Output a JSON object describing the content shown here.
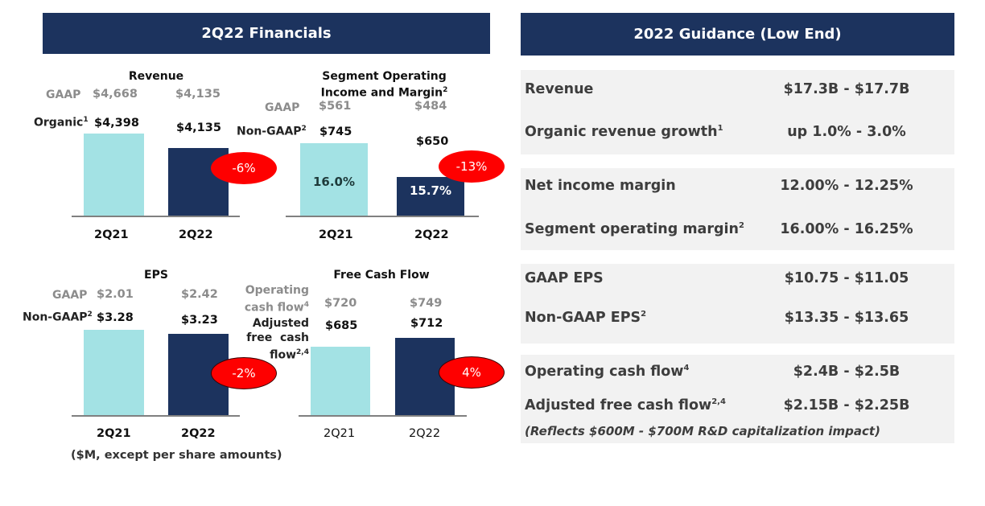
{
  "left_panel": {
    "title": "2Q22 Financials",
    "footnote": "($M, except per share amounts)"
  },
  "right_panel": {
    "title": "2022 Guidance (Low End)",
    "groups": [
      [
        {
          "label": "Revenue",
          "sup": "",
          "value": "$17.3B - $17.7B"
        },
        {
          "label": "Organic revenue growth",
          "sup": "1",
          "value": "up 1.0% - 3.0%"
        }
      ],
      [
        {
          "label": "Net income margin",
          "sup": "",
          "value": "12.00% - 12.25%"
        },
        {
          "label": "Segment operating margin",
          "sup": "2",
          "value": "16.00% - 16.25%"
        }
      ],
      [
        {
          "label": "GAAP EPS",
          "sup": "",
          "value": "$10.75 - $11.05"
        },
        {
          "label": "Non-GAAP EPS",
          "sup": "2",
          "value": "$13.35 - $13.65"
        }
      ],
      [
        {
          "label": "Operating cash flow",
          "sup": "4",
          "value": "$2.4B - $2.5B"
        },
        {
          "label": "Adjusted free cash flow",
          "sup": "2,4",
          "value": "$2.15B - $2.25B"
        }
      ]
    ],
    "note": "(Reflects $600M - $700M R&D capitalization impact)"
  },
  "chart_data": [
    {
      "type": "bar",
      "title": "Revenue",
      "categories": [
        "2Q21",
        "2Q22"
      ],
      "series": [
        {
          "name": "Organic",
          "sup": "1",
          "values": [
            4398,
            4135
          ],
          "labels": [
            "$4,398",
            "$4,135"
          ]
        },
        {
          "name": "GAAP",
          "sup": "",
          "values": [
            4668,
            4135
          ],
          "labels": [
            "$4,668",
            "$4,135"
          ]
        }
      ],
      "change": "-6%",
      "in_bar_labels": [
        "",
        ""
      ]
    },
    {
      "type": "bar",
      "title": "Segment Operating Income and Margin",
      "title_lines": [
        "Segment Operating",
        "Income and Margin"
      ],
      "title_sup": "2",
      "categories": [
        "2Q21",
        "2Q22"
      ],
      "series": [
        {
          "name": "Non-GAAP",
          "sup": "2",
          "values": [
            745,
            650
          ],
          "labels": [
            "$745",
            "$650"
          ]
        },
        {
          "name": "GAAP",
          "sup": "",
          "values": [
            561,
            484
          ],
          "labels": [
            "$561",
            "$484"
          ]
        }
      ],
      "change": "-13%",
      "in_bar_labels": [
        "16.0%",
        "15.7%"
      ]
    },
    {
      "type": "bar",
      "title": "EPS",
      "categories": [
        "2Q21",
        "2Q22"
      ],
      "series": [
        {
          "name": "Non-GAAP",
          "sup": "2",
          "values": [
            3.28,
            3.23
          ],
          "labels": [
            "$3.28",
            "$3.23"
          ]
        },
        {
          "name": "GAAP",
          "sup": "",
          "values": [
            2.01,
            2.42
          ],
          "labels": [
            "$2.01",
            "$2.42"
          ]
        }
      ],
      "change": "-2%",
      "in_bar_labels": [
        "",
        ""
      ]
    },
    {
      "type": "bar",
      "title": "Free Cash Flow",
      "categories": [
        "2Q21",
        "2Q22"
      ],
      "series": [
        {
          "name": "Adjusted free cash flow",
          "name_lines": [
            "Adjusted",
            "free  cash",
            "flow"
          ],
          "sup": "2,4",
          "values": [
            685,
            712
          ],
          "labels": [
            "$685",
            "$712"
          ]
        },
        {
          "name": "Operating cash flow",
          "name_lines": [
            "Operating",
            "cash flow"
          ],
          "sup": "4",
          "values": [
            720,
            749
          ],
          "labels": [
            "$720",
            "$749"
          ]
        }
      ],
      "change": "4%",
      "in_bar_labels": [
        "",
        ""
      ]
    }
  ],
  "colors": {
    "banner": "#1c335e",
    "bar_prior": "#a3e2e4",
    "bar_current": "#1c335e",
    "bubble": "#fe0000",
    "panel_bg": "#f2f2f2"
  }
}
